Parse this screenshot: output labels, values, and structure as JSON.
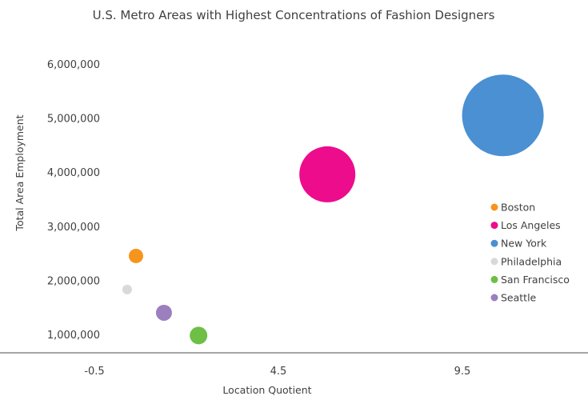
{
  "chart_data": {
    "type": "bubble",
    "title": "U.S. Metro Areas with Highest Concentrations of Fashion Designers",
    "xlabel": "Location Quotient",
    "ylabel": "Total Area Employment",
    "x_ticks": [
      "-0.5",
      "4.5",
      "9.5"
    ],
    "x_tick_values": [
      -0.5,
      4.5,
      9.5
    ],
    "y_ticks": [
      "1,000,000",
      "2,000,000",
      "3,000,000",
      "4,000,000",
      "5,000,000",
      "6,000,000"
    ],
    "y_tick_values": [
      1000000,
      2000000,
      3000000,
      4000000,
      5000000,
      6000000
    ],
    "xlim": [
      -1.0,
      12.5
    ],
    "ylim": [
      660000,
      6600000
    ],
    "grid": false,
    "legend_position": "right",
    "series": [
      {
        "name": "Boston",
        "x": 0.63,
        "y": 2450000,
        "size": 9,
        "color": "#F7941D"
      },
      {
        "name": "Los Angeles",
        "x": 5.83,
        "y": 3960000,
        "size": 35,
        "color": "#EC0C8C"
      },
      {
        "name": "New York",
        "x": 10.6,
        "y": 5050000,
        "size": 51,
        "color": "#4A90D2"
      },
      {
        "name": "Philadelphia",
        "x": 0.39,
        "y": 1830000,
        "size": 6,
        "color": "#D9D9D9"
      },
      {
        "name": "San Francisco",
        "x": 2.33,
        "y": 980000,
        "size": 11,
        "color": "#6DBF45"
      },
      {
        "name": "Seattle",
        "x": 1.39,
        "y": 1400000,
        "size": 10,
        "color": "#9B7FBE"
      }
    ]
  }
}
